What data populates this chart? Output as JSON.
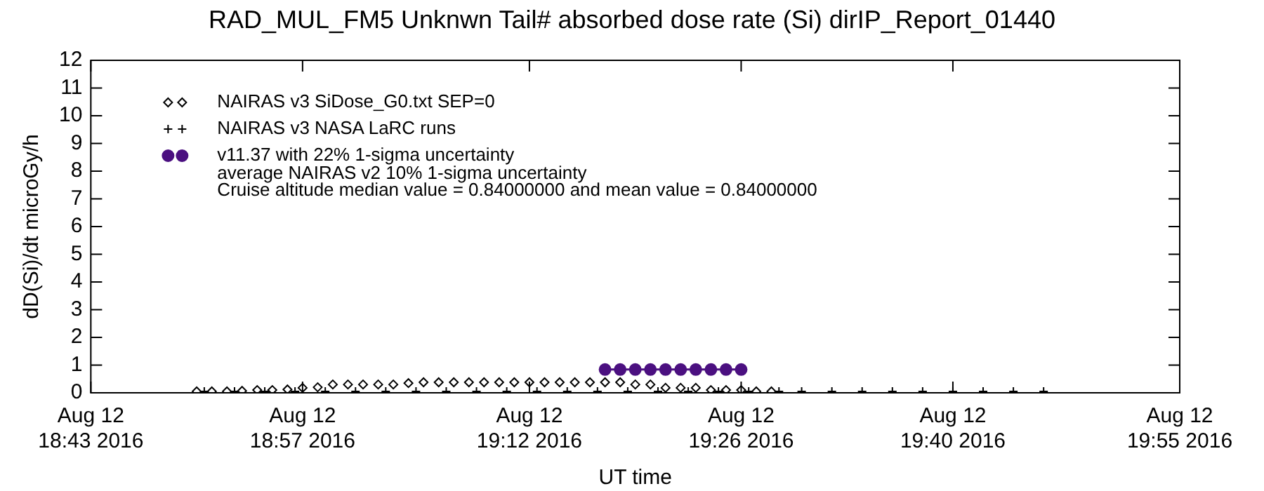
{
  "chart_data": {
    "type": "scatter",
    "title": "RAD_MUL_FM5 Unknwn Tail#  absorbed dose rate (Si) dirIP_Report_01440",
    "xlabel": "UT time",
    "ylabel": "dD(Si)/dt microGy/h",
    "xlim": [
      "2016-08-12T18:43",
      "2016-08-12T19:55"
    ],
    "xticks": [
      {
        "value": "2016-08-12T18:43",
        "label": "Aug 12\n18:43 2016"
      },
      {
        "value": "2016-08-12T18:57",
        "label": "Aug 12\n18:57 2016"
      },
      {
        "value": "2016-08-12T19:12",
        "label": "Aug 12\n19:12 2016"
      },
      {
        "value": "2016-08-12T19:26",
        "label": "Aug 12\n19:26 2016"
      },
      {
        "value": "2016-08-12T19:40",
        "label": "Aug 12\n19:40 2016"
      },
      {
        "value": "2016-08-12T19:55",
        "label": "Aug 12\n19:55 2016"
      }
    ],
    "ylim": [
      0,
      12
    ],
    "yticks": [
      0,
      1,
      2,
      3,
      4,
      5,
      6,
      7,
      8,
      9,
      10,
      11,
      12
    ],
    "grid": false,
    "legend": "top left",
    "series": [
      {
        "name": "NAIRAS v3 SiDose_G0.txt SEP=0",
        "marker": "diamond",
        "color": "#000000",
        "x": [
          "2016-08-12T18:50",
          "2016-08-12T18:51",
          "2016-08-12T18:52",
          "2016-08-12T18:53",
          "2016-08-12T18:54",
          "2016-08-12T18:55",
          "2016-08-12T18:56",
          "2016-08-12T18:57",
          "2016-08-12T18:58",
          "2016-08-12T18:59",
          "2016-08-12T19:00",
          "2016-08-12T19:01",
          "2016-08-12T19:02",
          "2016-08-12T19:03",
          "2016-08-12T19:04",
          "2016-08-12T19:05",
          "2016-08-12T19:06",
          "2016-08-12T19:07",
          "2016-08-12T19:08",
          "2016-08-12T19:09",
          "2016-08-12T19:10",
          "2016-08-12T19:11",
          "2016-08-12T19:12",
          "2016-08-12T19:13",
          "2016-08-12T19:14",
          "2016-08-12T19:15",
          "2016-08-12T19:16",
          "2016-08-12T19:17",
          "2016-08-12T19:18",
          "2016-08-12T19:19",
          "2016-08-12T19:20",
          "2016-08-12T19:21",
          "2016-08-12T19:22",
          "2016-08-12T19:23",
          "2016-08-12T19:24",
          "2016-08-12T19:25",
          "2016-08-12T19:26",
          "2016-08-12T19:27",
          "2016-08-12T19:28"
        ],
        "values": [
          0.05,
          0.05,
          0.05,
          0.07,
          0.1,
          0.1,
          0.12,
          0.18,
          0.2,
          0.3,
          0.3,
          0.3,
          0.3,
          0.3,
          0.35,
          0.38,
          0.38,
          0.38,
          0.38,
          0.38,
          0.38,
          0.38,
          0.38,
          0.38,
          0.38,
          0.38,
          0.38,
          0.38,
          0.38,
          0.3,
          0.3,
          0.18,
          0.18,
          0.18,
          0.1,
          0.1,
          0.1,
          0.05,
          0.05
        ]
      },
      {
        "name": "NAIRAS v3 NASA LaRC runs",
        "marker": "cross",
        "color": "#000000",
        "x": [
          "2016-08-12T18:50:30",
          "2016-08-12T18:52:30",
          "2016-08-12T18:54:30",
          "2016-08-12T18:56:30",
          "2016-08-12T18:58:30",
          "2016-08-12T19:00:30",
          "2016-08-12T19:02:30",
          "2016-08-12T19:04:30",
          "2016-08-12T19:06:30",
          "2016-08-12T19:08:30",
          "2016-08-12T19:10:30",
          "2016-08-12T19:12:30",
          "2016-08-12T19:14:30",
          "2016-08-12T19:16:30",
          "2016-08-12T19:18:30",
          "2016-08-12T19:20:30",
          "2016-08-12T19:22:30",
          "2016-08-12T19:24:30",
          "2016-08-12T19:26:30",
          "2016-08-12T19:28:30",
          "2016-08-12T19:30",
          "2016-08-12T19:32",
          "2016-08-12T19:34",
          "2016-08-12T19:36",
          "2016-08-12T19:38",
          "2016-08-12T19:40",
          "2016-08-12T19:42",
          "2016-08-12T19:44",
          "2016-08-12T19:46"
        ],
        "values": [
          0.05,
          0.05,
          0.05,
          0.05,
          0.05,
          0.05,
          0.05,
          0.05,
          0.05,
          0.05,
          0.05,
          0.05,
          0.05,
          0.05,
          0.05,
          0.05,
          0.05,
          0.05,
          0.05,
          0.05,
          0.05,
          0.05,
          0.05,
          0.05,
          0.05,
          0.05,
          0.05,
          0.05,
          0.05
        ]
      },
      {
        "name": "v11.37 with 22% 1-sigma uncertainty",
        "type": "line",
        "marker": "circle",
        "color": "#4b1080",
        "x": [
          "2016-08-12T19:17",
          "2016-08-12T19:18",
          "2016-08-12T19:19",
          "2016-08-12T19:20",
          "2016-08-12T19:21",
          "2016-08-12T19:22",
          "2016-08-12T19:23",
          "2016-08-12T19:24",
          "2016-08-12T19:25",
          "2016-08-12T19:26"
        ],
        "values": [
          0.84,
          0.84,
          0.84,
          0.84,
          0.84,
          0.84,
          0.84,
          0.84,
          0.84,
          0.84
        ]
      }
    ],
    "annotations": [
      "average NAIRAS v2 10% 1-sigma uncertainty",
      "Cruise altitude median value = 0.84000000 and mean value = 0.84000000"
    ]
  }
}
